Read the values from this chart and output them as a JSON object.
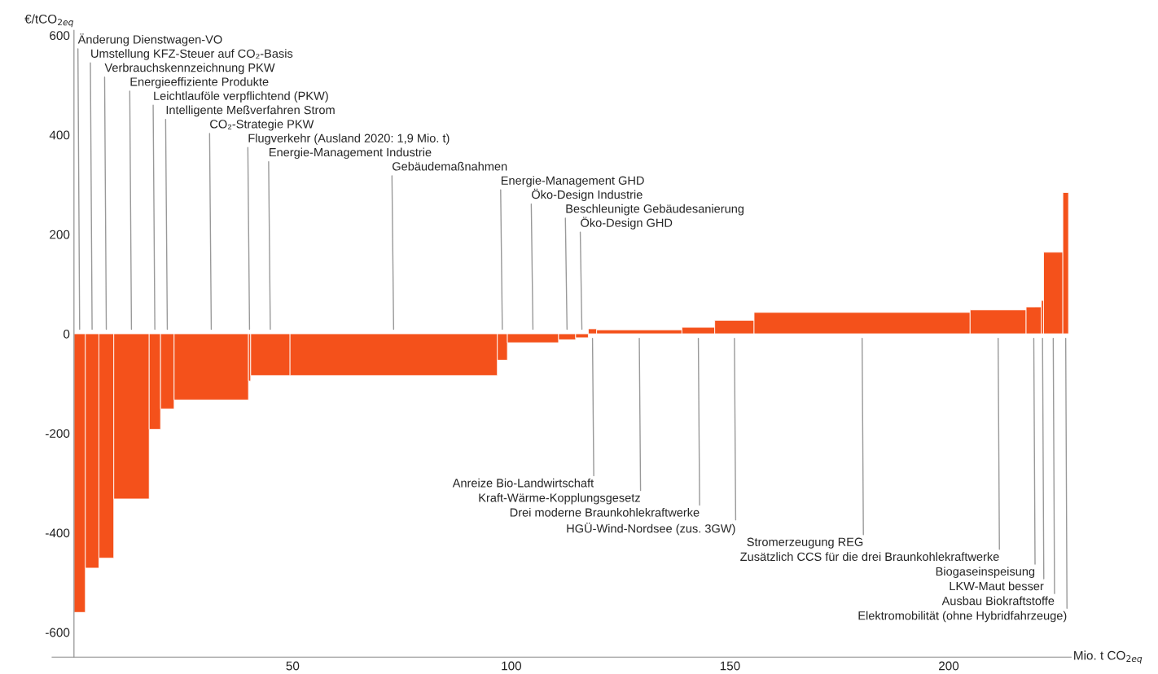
{
  "chart_data": {
    "type": "bar",
    "color": "#f4511b",
    "x": [
      1.3,
      4.15,
      7.4,
      13.15,
      18.5,
      21.35,
      31.4,
      40.15,
      44.9,
      73.1,
      97.95,
      104.95,
      112.75,
      116.15,
      118.55,
      129.25,
      142.75,
      151.0,
      180.2,
      211.3,
      219.45,
      221.45,
      223.9,
      226.75
    ],
    "values": [
      -560,
      -471,
      -451,
      -332,
      -192,
      -151,
      -133,
      -95,
      -84,
      -84,
      -53,
      -18,
      -12,
      -8,
      10,
      8,
      13,
      27,
      43,
      48,
      54,
      67,
      164,
      284
    ],
    "xlim": [
      -5,
      228
    ],
    "ylim": [
      -650,
      610
    ],
    "xticks": [
      50,
      100,
      150,
      200
    ],
    "yticks": [
      -600,
      -400,
      -200,
      0,
      200,
      400,
      600
    ],
    "ylabel": "€/tCO$_{2eq}$",
    "xlabel": "Mio. t CO$_{2eq}$",
    "grid": false,
    "annotations": [
      "Änderung Dienstwagen-VO",
      "Umstellung KFZ-Steuer auf CO₂-Basis",
      "Verbrauchskennzeichnung PKW",
      "Energieeffiziente Produkte",
      "Leichtlauföle verpflichtend (PKW)",
      "Intelligente Meßverfahren Strom",
      "CO₂-Strategie PKW",
      "Flugverkehr (Ausland 2020: 1,9 Mio. t)",
      "Energie-Management Industrie",
      "Gebäudemaßnahmen",
      "Energie-Management GHD",
      "Öko-Design Industrie",
      "Beschleunigte Gebäudesanierung",
      "Öko-Design GHD",
      "Anreize Bio-Landwirtschaft",
      "Kraft-Wärme-Kopplungsgesetz",
      "Drei moderne Braunkohlekraftwerke",
      "HGÜ-Wind-Nordsee (zus. 3GW)",
      "Stromerzeugung REG",
      "Zusätzlich CCS für die drei Braunkohlekraftwerke",
      "Biogaseinspeisung",
      "LKW-Maut besser",
      "Ausbau Biokraftstoffe",
      "Elektromobilität (ohne Hybridfahrzeuge)"
    ]
  }
}
